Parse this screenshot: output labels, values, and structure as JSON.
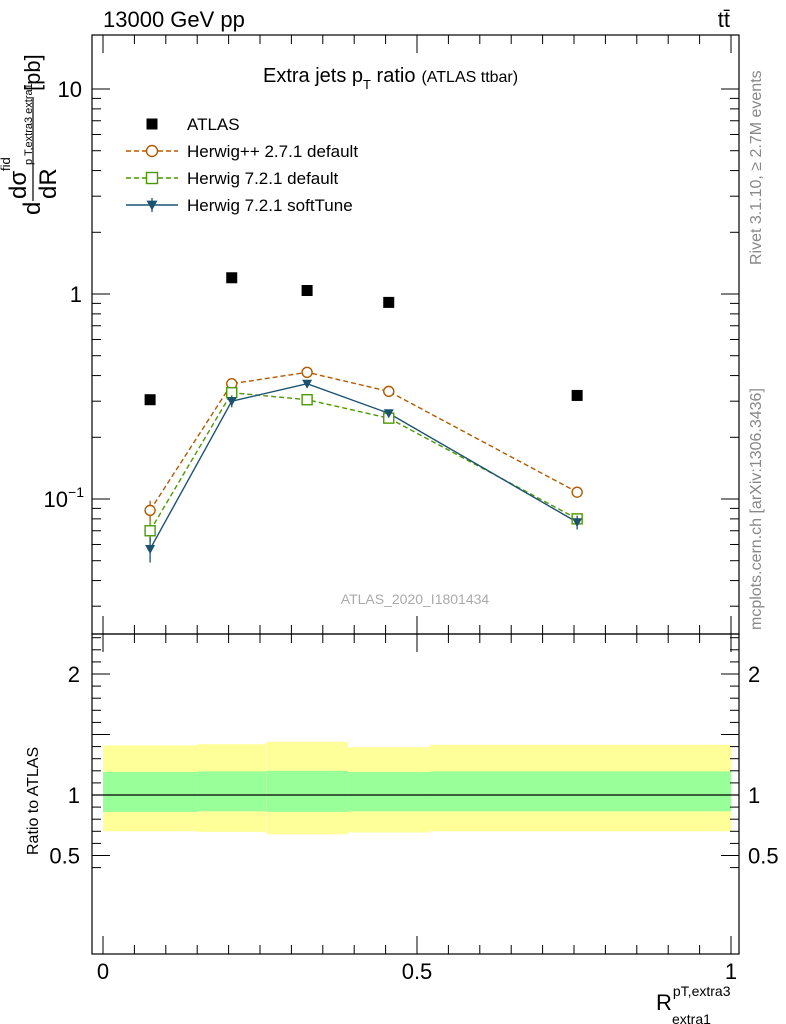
{
  "header": {
    "beam": "13000 GeV pp",
    "process": "tt̄"
  },
  "side_labels": {
    "rivet": "Rivet 3.1.10, ≥ 2.7M events",
    "mcplots": "mcplots.cern.ch [arXiv:1306.3436]"
  },
  "analysis_id": "ATLAS_2020_I1801434",
  "chart_data": [
    {
      "type": "scatter",
      "panel": "main",
      "title": "Extra jets p",
      "title_sub": "T",
      "title_rest": " ratio",
      "title_tag": "(ATLAS ttbar)",
      "ylabel": {
        "d": "d",
        "sigma": "dσ",
        "sigma_sup": "fid",
        "den": "dR",
        "den_sub": "p T,extra3 extra1",
        "unit": "[pb]"
      },
      "yscale": "log",
      "xlim": [
        -0.02,
        1.0
      ],
      "ylim": [
        0.025,
        18
      ],
      "y_ticks": [
        {
          "value": 10,
          "label": "10"
        },
        {
          "value": 1,
          "label": "1"
        },
        {
          "value": 0.1,
          "label": "10",
          "sup": "−1"
        }
      ],
      "legend_position": "top-left",
      "series": [
        {
          "name": "ATLAS",
          "marker": "square-filled",
          "color": "#000000",
          "line": "none",
          "x": [
            0.075,
            0.205,
            0.325,
            0.455,
            0.755
          ],
          "y": [
            0.305,
            1.2,
            1.04,
            0.91,
            0.32
          ],
          "yerr": [
            0,
            0,
            0,
            0,
            0
          ]
        },
        {
          "name": "Herwig++ 2.7.1 default",
          "marker": "circle-open",
          "color": "#b35900",
          "line": "dashed",
          "x": [
            0.075,
            0.205,
            0.325,
            0.455,
            0.755
          ],
          "y": [
            0.088,
            0.365,
            0.415,
            0.335,
            0.108
          ],
          "yerr": [
            0.01,
            0.01,
            0.01,
            0.01,
            0.004
          ]
        },
        {
          "name": "Herwig 7.2.1 default",
          "marker": "square-open",
          "color": "#4d9900",
          "line": "dashed",
          "x": [
            0.075,
            0.205,
            0.325,
            0.455,
            0.755
          ],
          "y": [
            0.07,
            0.33,
            0.305,
            0.248,
            0.08
          ],
          "yerr": [
            0.008,
            0.01,
            0.008,
            0.008,
            0.004
          ]
        },
        {
          "name": "Herwig 7.2.1 softTune",
          "marker": "triangle-down-filled",
          "color": "#1a5270",
          "line": "solid",
          "x": [
            0.075,
            0.205,
            0.325,
            0.455,
            0.755
          ],
          "y": [
            0.057,
            0.3,
            0.365,
            0.262,
            0.077
          ],
          "yerr": [
            0.008,
            0.02,
            0.01,
            0.01,
            0.006
          ]
        }
      ]
    },
    {
      "type": "area",
      "panel": "ratio",
      "ylabel": "Ratio to ATLAS",
      "xlabel": "R",
      "xlabel_sub": "extra1",
      "xlabel_sup": "pT,extra3",
      "xlim": [
        -0.02,
        1.0
      ],
      "ylim": [
        0.35,
        2.25
      ],
      "x_ticks": [
        {
          "value": 0,
          "label": "0"
        },
        {
          "value": 0.5,
          "label": "0.5"
        },
        {
          "value": 1,
          "label": "1"
        }
      ],
      "y_ticks": [
        {
          "value": 2,
          "label": "2"
        },
        {
          "value": 1,
          "label": "1"
        },
        {
          "value": 0.5,
          "label": "0.5"
        }
      ],
      "bins": [
        {
          "low": 0.0,
          "high": 0.15,
          "inner": [
            0.86,
            1.19
          ],
          "outer": [
            0.7,
            1.41
          ]
        },
        {
          "low": 0.15,
          "high": 0.26,
          "inner": [
            0.865,
            1.195
          ],
          "outer": [
            0.695,
            1.42
          ]
        },
        {
          "low": 0.26,
          "high": 0.39,
          "inner": [
            0.86,
            1.2
          ],
          "outer": [
            0.675,
            1.44
          ]
        },
        {
          "low": 0.39,
          "high": 0.52,
          "inner": [
            0.865,
            1.19
          ],
          "outer": [
            0.69,
            1.395
          ]
        },
        {
          "low": 0.52,
          "high": 1.0,
          "inner": [
            0.865,
            1.195
          ],
          "outer": [
            0.7,
            1.415
          ]
        }
      ],
      "colors": {
        "inner": "#99ff99",
        "outer": "#ffff99"
      },
      "reference": 1
    }
  ]
}
